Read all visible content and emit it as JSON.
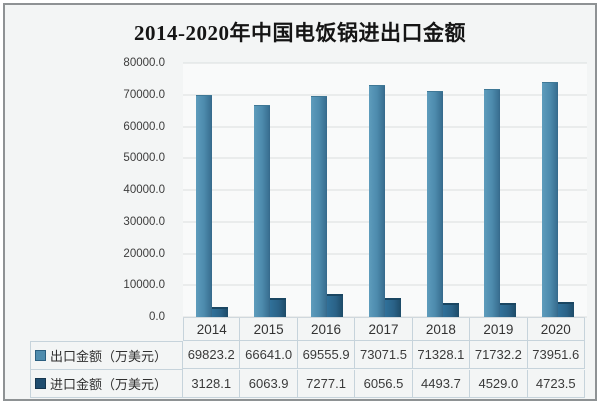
{
  "title": "2014-2020年中国电饭锅进出口金额",
  "colors": {
    "export_bar": "#4d8bad",
    "import_bar": "#1f4d6f",
    "gridline": "#dadedf",
    "table_border": "#c6d3db",
    "frame_border": "#8e9294",
    "background": "#f3f5f5"
  },
  "chart_data": {
    "type": "bar",
    "title": "2014-2020年中国电饭锅进出口金额",
    "categories": [
      "2014",
      "2015",
      "2016",
      "2017",
      "2018",
      "2019",
      "2020"
    ],
    "series": [
      {
        "name": "出口金额（万美元）",
        "color": "#4e8cae",
        "swatch_border": "#2b5f80",
        "values": [
          69823.2,
          66641.0,
          69555.9,
          73071.5,
          71328.1,
          71732.2,
          73951.6
        ]
      },
      {
        "name": "进口金额（万美元）",
        "color": "#1f4d6f",
        "swatch_border": "#16364e",
        "values": [
          3128.1,
          6063.9,
          7277.1,
          6056.5,
          4493.7,
          4529.0,
          4723.5
        ]
      }
    ],
    "xlabel": "",
    "ylabel": "",
    "ylim": [
      0,
      80000
    ],
    "y_ticks": [
      "80000.0",
      "70000.0",
      "60000.0",
      "50000.0",
      "40000.0",
      "30000.0",
      "20000.0",
      "10000.0",
      "0.0"
    ],
    "grid": true,
    "legend_position": "table-left",
    "value_decimals": 1
  }
}
